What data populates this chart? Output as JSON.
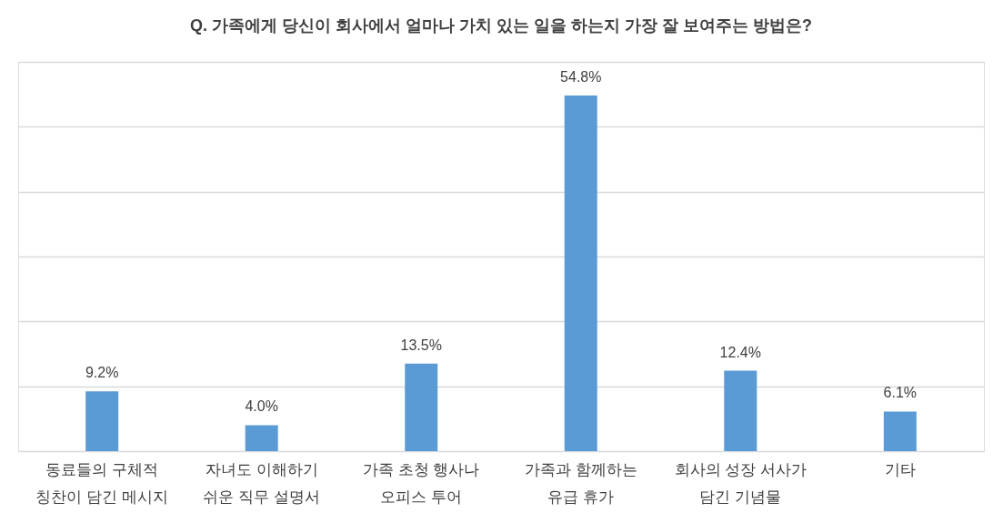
{
  "chart_data": {
    "type": "bar",
    "title": "Q. 가족에게 당신이 회사에서 얼마나 가치 있는 일을 하는지 가장 잘 보여주는 방법은?",
    "categories": [
      "동료들의 구체적\n칭찬이 담긴 메시지",
      "자녀도 이해하기\n쉬운 직무 설명서",
      "가족 초청 행사나\n오피스 투어",
      "가족과 함께하는\n유급 휴가",
      "회사의 성장 서사가\n담긴 기념물",
      "기타"
    ],
    "values": [
      9.2,
      4.0,
      13.5,
      54.8,
      12.4,
      6.1
    ],
    "value_labels": [
      "9.2%",
      "4.0%",
      "13.5%",
      "54.8%",
      "12.4%",
      "6.1%"
    ],
    "color": "#5b9bd5",
    "ylim": [
      0,
      60
    ],
    "yticks": [
      {
        "value": 0,
        "label": null
      },
      {
        "value": 10,
        "label": null
      },
      {
        "value": 20,
        "label": null
      },
      {
        "value": 30,
        "label": null
      },
      {
        "value": 40,
        "label": null
      },
      {
        "value": 50,
        "label": null
      },
      {
        "value": 60,
        "label": null
      }
    ],
    "grid": "y",
    "tick_labels": "x"
  }
}
